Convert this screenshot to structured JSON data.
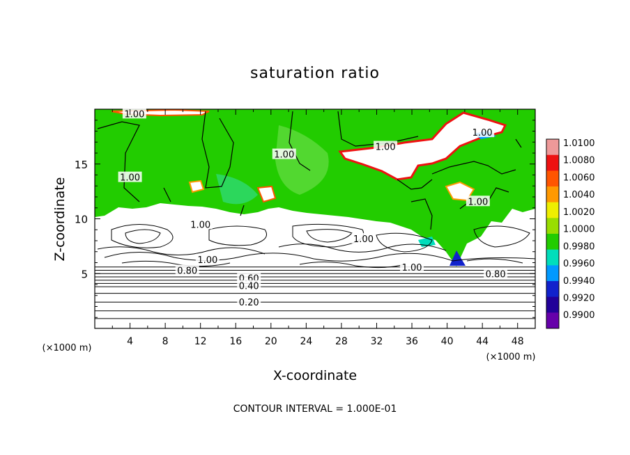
{
  "chart_data": {
    "type": "heatmap",
    "title": "saturation ratio",
    "xlabel": "X-coordinate",
    "ylabel": "Z-coordinate",
    "x_unit": "(×1000 m)",
    "y_unit": "(×1000 m)",
    "xlim": [
      0,
      50
    ],
    "ylim": [
      0,
      20
    ],
    "x_ticks": [
      4,
      8,
      12,
      16,
      20,
      24,
      28,
      32,
      36,
      40,
      44,
      48
    ],
    "y_ticks": [
      5,
      10,
      15
    ],
    "footer": "CONTOUR INTERVAL = 1.000E-01",
    "colorbar": {
      "labels": [
        "1.0100",
        "1.0080",
        "1.0060",
        "1.0040",
        "1.0020",
        "1.0000",
        "0.9980",
        "0.9960",
        "0.9940",
        "0.9920",
        "0.9900"
      ],
      "colors": [
        "#ee9999",
        "#ee1111",
        "#ff5500",
        "#ff9900",
        "#eeee00",
        "#99dd00",
        "#22cc00",
        "#00ddbb",
        "#0099ff",
        "#1122cc",
        "#220099",
        "#6600aa"
      ]
    },
    "contour_labels": [
      {
        "text": "1.00",
        "x": 4.5,
        "z": 19.6
      },
      {
        "text": "1.00",
        "x": 4.0,
        "z": 13.8
      },
      {
        "text": "1.00",
        "x": 21.5,
        "z": 15.9
      },
      {
        "text": "1.00",
        "x": 33.0,
        "z": 16.6
      },
      {
        "text": "1.00",
        "x": 44.0,
        "z": 17.9
      },
      {
        "text": "1.00",
        "x": 43.5,
        "z": 11.6
      },
      {
        "text": "1.00",
        "x": 12.0,
        "z": 9.5
      },
      {
        "text": "1.00",
        "x": 12.8,
        "z": 6.3
      },
      {
        "text": "1.00",
        "x": 30.5,
        "z": 8.2
      },
      {
        "text": "1.00",
        "x": 36.0,
        "z": 5.6
      },
      {
        "text": "0.80",
        "x": 10.5,
        "z": 5.3
      },
      {
        "text": "0.80",
        "x": 45.5,
        "z": 5.0
      },
      {
        "text": "0.60",
        "x": 17.5,
        "z": 4.6
      },
      {
        "text": "0.40",
        "x": 17.5,
        "z": 3.9
      },
      {
        "text": "0.20",
        "x": 17.5,
        "z": 2.4
      }
    ],
    "horizontal_contours": [
      0.9,
      1.6,
      2.4,
      3.2,
      3.8,
      4.1,
      4.4,
      4.7,
      5.0,
      5.3,
      5.6
    ]
  }
}
